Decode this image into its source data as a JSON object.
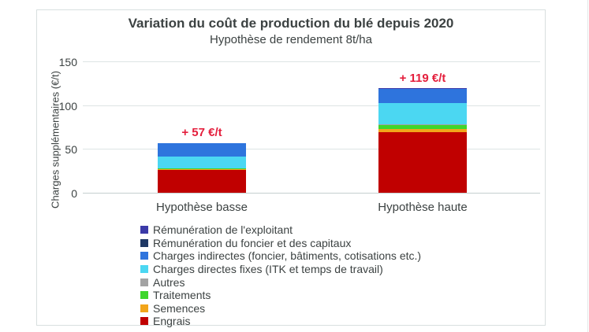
{
  "chart_data": {
    "type": "bar",
    "variant": "stacked",
    "title": "Variation du coût de production du blé depuis 2020",
    "subtitle": "Hypothèse de rendement 8t/ha",
    "ylabel": "Charges supplémentaires (€/t)",
    "ylim": [
      0,
      150
    ],
    "yticks": [
      0,
      50,
      100,
      150
    ],
    "grid": "horizontal",
    "legend_position": "bottom-left",
    "categories": [
      "Hypothèse basse",
      "Hypothèse haute"
    ],
    "totals": [
      57,
      119
    ],
    "total_labels": [
      "+ 57 €/t",
      "+ 119 €/t"
    ],
    "series": [
      {
        "name": "Engrais",
        "color": "#c00000",
        "values": [
          26,
          69
        ]
      },
      {
        "name": "Semences",
        "color": "#f2a51a",
        "values": [
          1,
          4
        ]
      },
      {
        "name": "Traitements",
        "color": "#3ed62c",
        "values": [
          1,
          4
        ]
      },
      {
        "name": "Autres",
        "color": "#a3a3a3",
        "values": [
          0,
          1
        ]
      },
      {
        "name": "Charges directes fixes (ITK et temps de travail)",
        "color": "#4bd7f2",
        "values": [
          13,
          24
        ]
      },
      {
        "name": "Charges indirectes (foncier, bâtiments, cotisations etc.)",
        "color": "#2e74dd",
        "values": [
          16,
          16.5
        ]
      },
      {
        "name": "Rémunération du foncier et des capitaux",
        "color": "#1f3864",
        "values": [
          0,
          0
        ]
      },
      {
        "name": "Rémunération de l'exploitant",
        "color": "#3b3aa8",
        "values": [
          0,
          0.5
        ]
      }
    ],
    "colors": {
      "annotation": "#e41e3c",
      "text": "#3c4242",
      "gridline": "#dde4e4",
      "frame_border": "#d8dfdf"
    }
  }
}
